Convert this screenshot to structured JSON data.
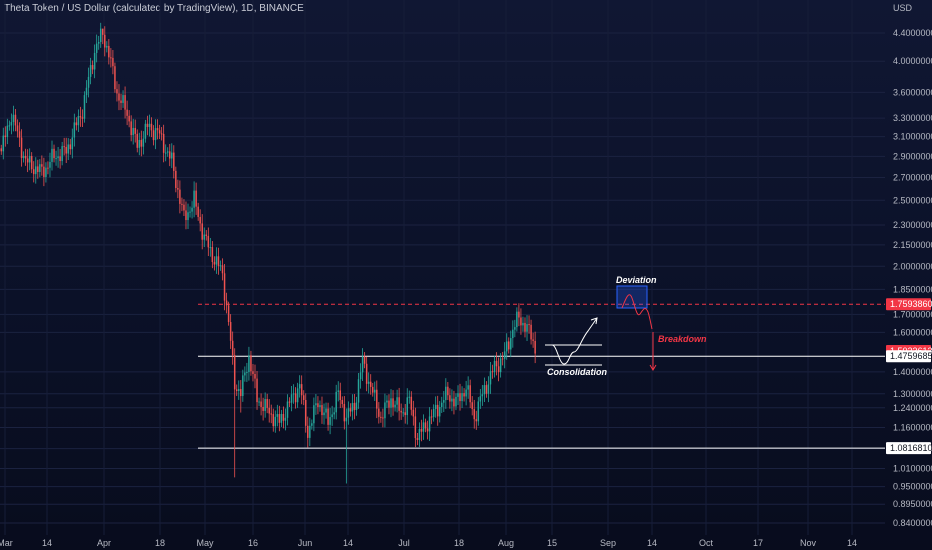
{
  "header": {
    "title": "Theta Token / US Dollar (calculated by TradingView), 1D, BINANCE"
  },
  "axis": {
    "currency": "USD",
    "price_ticks": [
      "4.4000000",
      "4.0000000",
      "3.6000000",
      "3.3000000",
      "3.1000000",
      "2.9000000",
      "2.7000000",
      "2.5000000",
      "2.3000000",
      "2.1500000",
      "2.0000000",
      "1.8500000",
      "1.7000000",
      "1.6000000",
      "1.4000000",
      "1.3000000",
      "1.2400000",
      "1.1600000",
      "1.0800000",
      "1.0100000",
      "0.9500000",
      "0.8950000",
      "0.8400000"
    ],
    "time_ticks": [
      "Mar",
      "14",
      "Apr",
      "18",
      "May",
      "16",
      "Jun",
      "14",
      "Jul",
      "18",
      "Aug",
      "15",
      "Sep",
      "14",
      "Oct",
      "17",
      "Nov",
      "14"
    ]
  },
  "levels": {
    "resistance_dashed": "1.7593860",
    "current_price": "1.5023613",
    "support_upper": "1.4759685",
    "support_lower": "1.0816810"
  },
  "annotations": {
    "deviation": "Deviation",
    "breakdown": "Breakdown",
    "consolidation": "Consolidation"
  },
  "colors": {
    "bull": "#26a69a",
    "bear": "#ef5350",
    "resistance": "#f23645",
    "support": "#ffffff",
    "deviation_box": "#2962ff"
  },
  "chart_data": {
    "type": "candlestick",
    "scale": "log",
    "symbol": "THETA/USD",
    "interval": "1D",
    "x": [
      "Mar",
      "Apr",
      "May",
      "Jun",
      "Jul",
      "Aug"
    ],
    "approx_closes": [
      2.95,
      3.2,
      2.1,
      1.28,
      1.22,
      1.62
    ],
    "key_points": [
      {
        "label": "Apr high",
        "value": 4.45
      },
      {
        "label": "May low wick",
        "value": 0.98
      },
      {
        "label": "Jun low wick",
        "value": 0.96
      }
    ],
    "horizontal_levels": [
      1.759386,
      1.4759685,
      1.081681
    ],
    "last_price": 1.5023613
  }
}
